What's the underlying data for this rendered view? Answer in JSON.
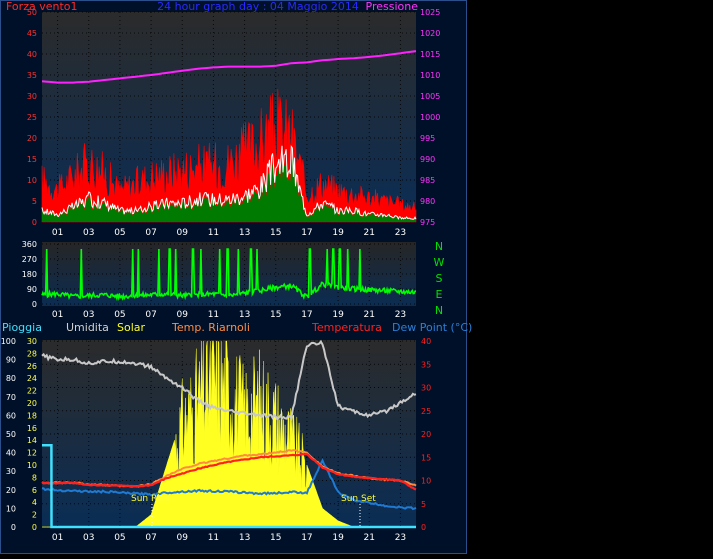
{
  "header": {
    "left_label": "Forza vento1",
    "title": "24 hour graph day : 04 Maggio 2014",
    "right_label": "Pressione"
  },
  "mid_labels": {
    "pioggia": "Pioggia",
    "umidita": "Umidita",
    "solar": "Solar",
    "temp_riarnoli": "Temp. Riarnoli",
    "temperatura": "Temperatura",
    "dew_point": "Dew Point (°C)"
  },
  "compass": [
    "N",
    "W",
    "S",
    "E",
    "N"
  ],
  "annotations": {
    "sun_rise": "Sun Rise",
    "sun_set": "Sun Set"
  },
  "colors": {
    "gust": "#ff0000",
    "avg_wind": "#ffffff",
    "wind_fill": "#007a00",
    "pressure": "#ff22ff",
    "direction": "#00ff00",
    "solar": "#ffff22",
    "humidity": "#c8c8c8",
    "temperature": "#ff2020",
    "temp_riarnoli": "#ff8c40",
    "dew_point": "#1e7ad2",
    "rain": "#40e0ff",
    "title": "#2222ff",
    "plot_top": "#2a2a2a",
    "plot_bottom": "#0a2d55"
  },
  "chart_data": [
    {
      "type": "area",
      "title": "24 hour graph day : 04 Maggio 2014",
      "x_ticks": [
        "01",
        "03",
        "05",
        "07",
        "09",
        "11",
        "13",
        "15",
        "17",
        "19",
        "21",
        "23"
      ],
      "y_left_ticks": [
        "0",
        "5",
        "10",
        "15",
        "20",
        "25",
        "30",
        "35",
        "40",
        "45",
        "50"
      ],
      "y_left_lim": [
        0,
        50
      ],
      "y_right_ticks": [
        "975",
        "980",
        "985",
        "990",
        "995",
        "1000",
        "1005",
        "1010",
        "1015",
        "1020",
        "1025"
      ],
      "y_right_lim": [
        975,
        1025
      ],
      "series": [
        {
          "name": "Forza vento1",
          "axis": "left",
          "x": [
            0,
            1,
            2,
            3,
            4,
            5,
            6,
            7,
            8,
            9,
            10,
            11,
            12,
            13,
            14,
            15,
            16,
            17,
            18,
            19,
            20,
            21,
            22,
            23,
            24
          ],
          "values": [
            12,
            9,
            13,
            17,
            14,
            9,
            11,
            13,
            14,
            15,
            16,
            16,
            17,
            20,
            23,
            27,
            25,
            8,
            11,
            9,
            8,
            7,
            6,
            5,
            4
          ]
        },
        {
          "name": "Vento medio",
          "axis": "left",
          "x": [
            0,
            1,
            2,
            3,
            4,
            5,
            6,
            7,
            8,
            9,
            10,
            11,
            12,
            13,
            14,
            15,
            16,
            17,
            18,
            19,
            20,
            21,
            22,
            23,
            24
          ],
          "values": [
            3,
            2,
            4,
            6,
            5,
            3,
            3,
            4,
            5,
            5,
            6,
            6,
            6,
            7,
            9,
            15,
            16,
            2,
            5,
            3,
            3,
            2,
            2,
            1,
            1
          ]
        },
        {
          "name": "Pressione",
          "axis": "right",
          "x": [
            0,
            1,
            2,
            3,
            4,
            5,
            6,
            7,
            8,
            9,
            10,
            11,
            12,
            13,
            14,
            15,
            16,
            17,
            18,
            19,
            20,
            21,
            22,
            23,
            24
          ],
          "values": [
            1008.5,
            1008.2,
            1008.2,
            1008.4,
            1008.8,
            1009.2,
            1009.6,
            1010,
            1010.5,
            1011,
            1011.5,
            1011.8,
            1012,
            1012,
            1012,
            1012.2,
            1012.8,
            1013,
            1013.5,
            1013.8,
            1014,
            1014.3,
            1014.7,
            1015.2,
            1015.7
          ]
        }
      ]
    },
    {
      "type": "line",
      "title": "",
      "x_ticks": [
        "01",
        "03",
        "05",
        "07",
        "09",
        "11",
        "13",
        "15",
        "17",
        "19",
        "21",
        "23"
      ],
      "y_ticks": [
        "0",
        "90",
        "180",
        "270",
        "360"
      ],
      "y_lim": [
        0,
        360
      ],
      "spike_hours": [
        0.3,
        2.5,
        5.8,
        6.2,
        7.5,
        8.2,
        8.6,
        9.7,
        10.2,
        11.4,
        11.9,
        12.6,
        13.4,
        13.8,
        17.2,
        18.3,
        18.7,
        19.1,
        19.6,
        20.4
      ],
      "series": [
        {
          "name": "Direzione vento",
          "x": [
            0,
            1,
            2,
            3,
            4,
            5,
            6,
            7,
            8,
            9,
            10,
            11,
            12,
            13,
            14,
            15,
            16,
            17,
            18,
            19,
            20,
            21,
            22,
            23,
            24
          ],
          "values": [
            55,
            60,
            45,
            50,
            55,
            45,
            50,
            55,
            60,
            50,
            55,
            60,
            50,
            65,
            80,
            100,
            110,
            40,
            120,
            100,
            90,
            85,
            80,
            75,
            70
          ]
        }
      ]
    },
    {
      "type": "area",
      "title": "",
      "x_ticks": [
        "01",
        "03",
        "05",
        "07",
        "09",
        "11",
        "13",
        "15",
        "17",
        "19",
        "21",
        "23"
      ],
      "y_left_ticks": [
        "0",
        "10",
        "20",
        "30",
        "40",
        "50",
        "60",
        "70",
        "80",
        "90",
        "100"
      ],
      "y_left_lim": [
        0,
        100
      ],
      "y_left2_ticks": [
        "0",
        "2",
        "4",
        "6",
        "8",
        "10",
        "12",
        "14",
        "16",
        "18",
        "20",
        "22",
        "24",
        "26",
        "28",
        "30"
      ],
      "y_left2_lim": [
        0,
        30
      ],
      "y_right_ticks": [
        "0",
        "5",
        "10",
        "15",
        "20",
        "25",
        "30",
        "35",
        "40"
      ],
      "y_right_lim": [
        0,
        40
      ],
      "series": [
        {
          "name": "Umidita",
          "axis": "left",
          "x": [
            0,
            1,
            2,
            3,
            4,
            5,
            6,
            7,
            8,
            9,
            10,
            11,
            12,
            13,
            14,
            15,
            16,
            17,
            18,
            19,
            20,
            21,
            22,
            23,
            24
          ],
          "values": [
            92,
            90,
            90,
            88,
            89,
            89,
            88,
            86,
            80,
            75,
            68,
            64,
            62,
            61,
            60,
            59,
            59,
            98,
            99,
            65,
            62,
            60,
            62,
            67,
            72
          ]
        },
        {
          "name": "Solar",
          "axis": "left2",
          "x": [
            0,
            1,
            2,
            3,
            4,
            5,
            6,
            7,
            8,
            9,
            10,
            11,
            12,
            13,
            14,
            15,
            16,
            17,
            18,
            19,
            20,
            21,
            22,
            23,
            24
          ],
          "values": [
            0,
            0,
            0,
            0,
            0,
            0,
            0,
            2,
            10,
            18,
            22,
            26,
            24,
            20,
            22,
            19,
            15,
            10,
            3,
            1,
            0,
            0,
            0,
            0,
            0
          ]
        },
        {
          "name": "Temp. Riarnoli",
          "axis": "right",
          "x": [
            0,
            1,
            2,
            3,
            4,
            5,
            6,
            7,
            8,
            9,
            10,
            11,
            12,
            13,
            14,
            15,
            16,
            17,
            18,
            19,
            20,
            21,
            22,
            23,
            24
          ],
          "values": [
            9.5,
            9.5,
            9.5,
            9.2,
            9.0,
            8.8,
            8.7,
            9.2,
            11,
            12.5,
            13.5,
            14.2,
            14.8,
            15.4,
            15.6,
            16.0,
            16.5,
            16.0,
            13.0,
            11.5,
            11.0,
            10.5,
            10.2,
            10.0,
            9.0
          ]
        },
        {
          "name": "Temperatura",
          "axis": "right",
          "x": [
            0,
            1,
            2,
            3,
            4,
            5,
            6,
            7,
            8,
            9,
            10,
            11,
            12,
            13,
            14,
            15,
            16,
            17,
            18,
            19,
            20,
            21,
            22,
            23,
            24
          ],
          "values": [
            9.5,
            9.4,
            9.5,
            9.0,
            9.0,
            8.9,
            8.7,
            9.0,
            10.5,
            11.5,
            12.5,
            13.3,
            14.0,
            14.5,
            15.0,
            15.2,
            15.4,
            15.7,
            12.8,
            11.4,
            10.8,
            10.5,
            10.3,
            10.0,
            8.0
          ]
        },
        {
          "name": "Dew Point (°C)",
          "axis": "right",
          "x": [
            0,
            1,
            2,
            3,
            4,
            5,
            6,
            7,
            8,
            9,
            10,
            11,
            12,
            13,
            14,
            15,
            16,
            17,
            18,
            19,
            20,
            21,
            22,
            23,
            24
          ],
          "values": [
            8.2,
            7.9,
            7.8,
            7.6,
            7.6,
            7.4,
            7.2,
            7.0,
            7.4,
            7.6,
            7.8,
            7.7,
            7.6,
            7.4,
            7.2,
            7.3,
            7.5,
            7.4,
            14.2,
            7.5,
            5.8,
            5.2,
            4.6,
            4.2,
            4.0
          ]
        },
        {
          "name": "Pioggia",
          "axis": "left",
          "x": [
            0,
            0.6,
            0.61,
            24
          ],
          "values": [
            44,
            44,
            0,
            0
          ]
        }
      ]
    }
  ]
}
